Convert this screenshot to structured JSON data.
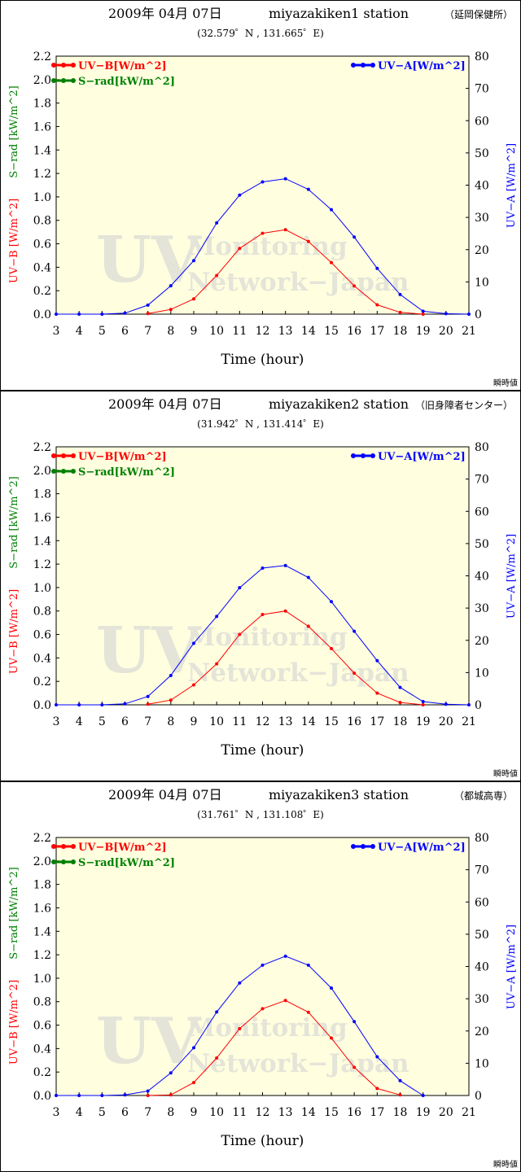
{
  "chart_data": [
    {
      "type": "line",
      "title": "2009年 04月 07日",
      "station": "miyazakiken1 station",
      "location": "（延岡保健所）",
      "coords": "(32.579゜N , 131.665゜E)",
      "xlabel": "Time (hour)",
      "ylabel_left_red": "UV−B [W/m^2]",
      "ylabel_left_green": "S−rad [kW/m^2]",
      "ylabel_right": "UV−A [W/m^2]",
      "note": "瞬時値",
      "watermark_big": "UV",
      "watermark_line1": "Monitoring",
      "watermark_line2": "Network−Japan",
      "xlim": [
        3,
        21
      ],
      "ylim_left": [
        0,
        2.2
      ],
      "ylim_right": [
        0,
        80
      ],
      "x_ticks": [
        3,
        4,
        5,
        6,
        7,
        8,
        9,
        10,
        11,
        12,
        13,
        14,
        15,
        16,
        17,
        18,
        19,
        20,
        21
      ],
      "yleft_ticks": [
        "0.0",
        "0.2",
        "0.4",
        "0.6",
        "0.8",
        "1.0",
        "1.2",
        "1.4",
        "1.6",
        "1.8",
        "2.0",
        "2.2"
      ],
      "yright_ticks": [
        "0",
        "10",
        "20",
        "30",
        "40",
        "50",
        "60",
        "70",
        "80"
      ],
      "legend": [
        {
          "name": "UV−B[W/m^2]",
          "color": "#ff0000",
          "position": "top-left"
        },
        {
          "name": "S−rad[kW/m^2]",
          "color": "#008000",
          "position": "top-left"
        },
        {
          "name": "UV−A[W/m^2]",
          "color": "#0000ff",
          "position": "top-right"
        }
      ],
      "series": [
        {
          "name": "UV−B[W/m^2]",
          "axis": "left",
          "color": "#ff0000",
          "x": [
            7,
            8,
            9,
            10,
            11,
            12,
            13,
            14,
            15,
            16,
            17,
            18,
            19
          ],
          "y": [
            0.005,
            0.04,
            0.13,
            0.33,
            0.56,
            0.69,
            0.72,
            0.62,
            0.44,
            0.24,
            0.08,
            0.015,
            0.0
          ]
        },
        {
          "name": "UV−A[W/m^2]",
          "axis": "right",
          "color": "#0000ff",
          "x": [
            3,
            4,
            5,
            6,
            7,
            8,
            9,
            10,
            11,
            12,
            13,
            14,
            15,
            16,
            17,
            18,
            19,
            20,
            21
          ],
          "y": [
            0,
            0,
            0,
            0.3,
            2.8,
            8.8,
            16.6,
            28.3,
            36.9,
            41.0,
            42.0,
            38.7,
            32.4,
            23.9,
            14.2,
            6.1,
            0.9,
            0.15,
            0
          ]
        }
      ]
    },
    {
      "type": "line",
      "title": "2009年 04月 07日",
      "station": "miyazakiken2 station",
      "location": "（旧身障者センター）",
      "coords": "(31.942゜N , 131.414゜E)",
      "xlabel": "Time (hour)",
      "ylabel_left_red": "UV−B [W/m^2]",
      "ylabel_left_green": "S−rad [kW/m^2]",
      "ylabel_right": "UV−A [W/m^2]",
      "note": "瞬時値",
      "watermark_big": "UV",
      "watermark_line1": "Monitoring",
      "watermark_line2": "Network−Japan",
      "xlim": [
        3,
        21
      ],
      "ylim_left": [
        0,
        2.2
      ],
      "ylim_right": [
        0,
        80
      ],
      "x_ticks": [
        3,
        4,
        5,
        6,
        7,
        8,
        9,
        10,
        11,
        12,
        13,
        14,
        15,
        16,
        17,
        18,
        19,
        20,
        21
      ],
      "yleft_ticks": [
        "0.0",
        "0.2",
        "0.4",
        "0.6",
        "0.8",
        "1.0",
        "1.2",
        "1.4",
        "1.6",
        "1.8",
        "2.0",
        "2.2"
      ],
      "yright_ticks": [
        "0",
        "10",
        "20",
        "30",
        "40",
        "50",
        "60",
        "70",
        "80"
      ],
      "legend": [
        {
          "name": "UV−B[W/m^2]",
          "color": "#ff0000",
          "position": "top-left"
        },
        {
          "name": "S−rad[kW/m^2]",
          "color": "#008000",
          "position": "top-left"
        },
        {
          "name": "UV−A[W/m^2]",
          "color": "#0000ff",
          "position": "top-right"
        }
      ],
      "series": [
        {
          "name": "UV−B[W/m^2]",
          "axis": "left",
          "color": "#ff0000",
          "x": [
            7,
            8,
            9,
            10,
            11,
            12,
            13,
            14,
            15,
            16,
            17,
            18,
            19
          ],
          "y": [
            0.005,
            0.04,
            0.17,
            0.35,
            0.6,
            0.77,
            0.8,
            0.67,
            0.48,
            0.27,
            0.1,
            0.02,
            0.0
          ]
        },
        {
          "name": "UV−A[W/m^2]",
          "axis": "right",
          "color": "#0000ff",
          "x": [
            3,
            4,
            5,
            6,
            7,
            8,
            9,
            10,
            11,
            12,
            13,
            14,
            15,
            16,
            17,
            18,
            19,
            20,
            21
          ],
          "y": [
            0,
            0,
            0,
            0.3,
            2.6,
            9.1,
            19.1,
            27.4,
            36.3,
            42.4,
            43.2,
            39.5,
            32.0,
            22.8,
            13.7,
            5.4,
            1.0,
            0.2,
            0
          ]
        }
      ]
    },
    {
      "type": "line",
      "title": "2009年 04月 07日",
      "station": "miyazakiken3 station",
      "location": "（都城高専）",
      "coords": "(31.761゜N , 131.108゜E)",
      "xlabel": "Time (hour)",
      "ylabel_left_red": "UV−B [W/m^2]",
      "ylabel_left_green": "S−rad [kW/m^2]",
      "ylabel_right": "UV−A [W/m^2]",
      "note": "瞬時値",
      "watermark_big": "UV",
      "watermark_line1": "Monitoring",
      "watermark_line2": "Network−Japan",
      "xlim": [
        3,
        21
      ],
      "ylim_left": [
        0,
        2.2
      ],
      "ylim_right": [
        0,
        80
      ],
      "x_ticks": [
        3,
        4,
        5,
        6,
        7,
        8,
        9,
        10,
        11,
        12,
        13,
        14,
        15,
        16,
        17,
        18,
        19,
        20,
        21
      ],
      "yleft_ticks": [
        "0.0",
        "0.2",
        "0.4",
        "0.6",
        "0.8",
        "1.0",
        "1.2",
        "1.4",
        "1.6",
        "1.8",
        "2.0",
        "2.2"
      ],
      "yright_ticks": [
        "0",
        "10",
        "20",
        "30",
        "40",
        "50",
        "60",
        "70",
        "80"
      ],
      "legend": [
        {
          "name": "UV−B[W/m^2]",
          "color": "#ff0000",
          "position": "top-left"
        },
        {
          "name": "S−rad[kW/m^2]",
          "color": "#008000",
          "position": "top-left"
        },
        {
          "name": "UV−A[W/m^2]",
          "color": "#0000ff",
          "position": "top-right"
        }
      ],
      "series": [
        {
          "name": "UV−B[W/m^2]",
          "axis": "left",
          "color": "#ff0000",
          "x": [
            7,
            8,
            9,
            10,
            11,
            12,
            13,
            14,
            15,
            16,
            17,
            18
          ],
          "y": [
            0.0,
            0.005,
            0.11,
            0.32,
            0.57,
            0.74,
            0.81,
            0.71,
            0.49,
            0.24,
            0.06,
            0.005
          ]
        },
        {
          "name": "UV−A[W/m^2]",
          "axis": "right",
          "color": "#0000ff",
          "x": [
            3,
            4,
            5,
            6,
            7,
            8,
            9,
            10,
            11,
            12,
            13,
            14,
            15,
            16,
            17,
            18,
            19
          ],
          "y": [
            0,
            0,
            0,
            0.2,
            1.4,
            7.0,
            14.8,
            25.9,
            34.9,
            40.4,
            43.2,
            40.4,
            33.3,
            22.9,
            12.0,
            4.6,
            0
          ]
        }
      ]
    }
  ]
}
